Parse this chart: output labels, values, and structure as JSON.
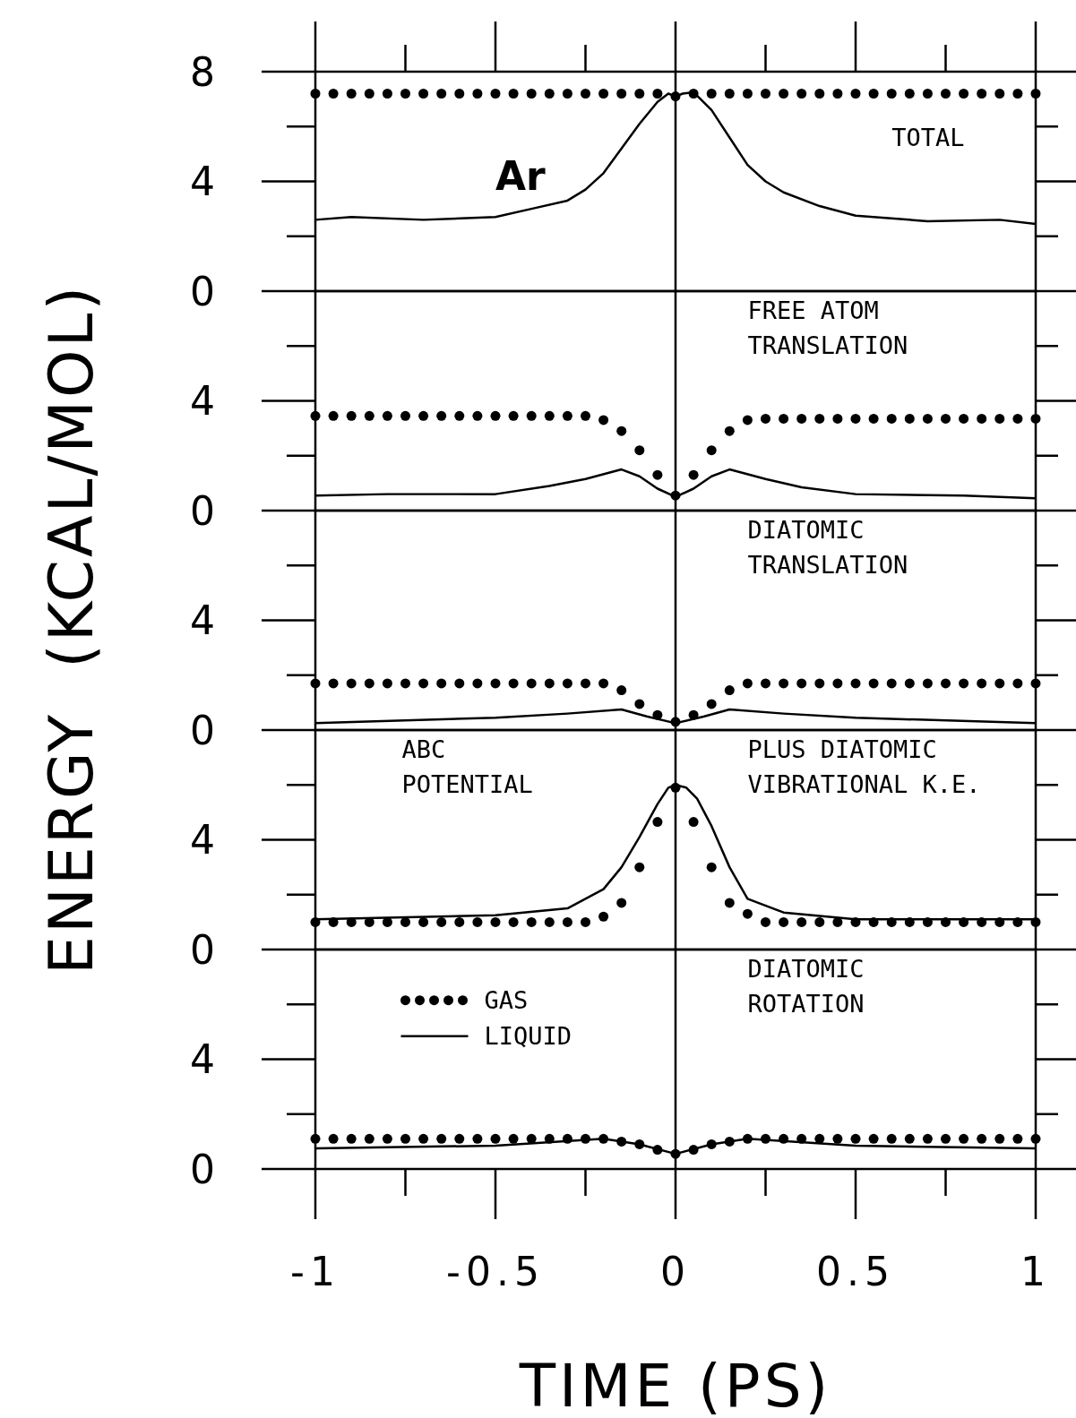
{
  "chart_data": [
    {
      "type": "line",
      "annotations": [
        "Ar",
        "TOTAL"
      ],
      "xlim": [
        -1,
        1
      ],
      "xticks": [
        {
          "value": -1,
          "label": null
        },
        {
          "value": -0.5,
          "label": null
        },
        {
          "value": 0,
          "label": null
        },
        {
          "value": 0.5,
          "label": null
        },
        {
          "value": 1,
          "label": null
        }
      ],
      "ylim": [
        0,
        8
      ],
      "yticks": [
        0,
        4,
        8
      ],
      "tick_labels": "y",
      "legend": false,
      "ref_lines": [
        {
          "axis": "x",
          "value": 0
        }
      ],
      "series": [
        {
          "type": "scatter",
          "marker": "circle",
          "color": "#000000",
          "x": [
            -1,
            -0.95,
            -0.9,
            -0.85,
            -0.8,
            -0.75,
            -0.7,
            -0.65,
            -0.6,
            -0.55,
            -0.5,
            -0.45,
            -0.4,
            -0.35,
            -0.3,
            -0.25,
            -0.2,
            -0.15,
            -0.1,
            -0.05,
            0,
            0.05,
            0.1,
            0.15,
            0.2,
            0.25,
            0.3,
            0.35,
            0.4,
            0.45,
            0.5,
            0.55,
            0.6,
            0.65,
            0.7,
            0.75,
            0.8,
            0.85,
            0.9,
            0.95,
            1
          ],
          "values": [
            7.2,
            7.2,
            7.2,
            7.2,
            7.2,
            7.2,
            7.2,
            7.2,
            7.2,
            7.2,
            7.2,
            7.2,
            7.2,
            7.2,
            7.2,
            7.2,
            7.2,
            7.2,
            7.2,
            7.2,
            7.1,
            7.2,
            7.2,
            7.2,
            7.2,
            7.2,
            7.2,
            7.2,
            7.2,
            7.2,
            7.2,
            7.2,
            7.2,
            7.2,
            7.2,
            7.2,
            7.2,
            7.2,
            7.2,
            7.2,
            7.2
          ]
        },
        {
          "type": "line",
          "marker": "none",
          "line_style": "solid",
          "color": "#000000",
          "x": [
            -1,
            -0.9,
            -0.7,
            -0.5,
            -0.4,
            -0.3,
            -0.25,
            -0.2,
            -0.15,
            -0.1,
            -0.05,
            -0.02,
            0,
            0.02,
            0.05,
            0.1,
            0.15,
            0.2,
            0.25,
            0.3,
            0.4,
            0.5,
            0.7,
            0.9,
            1
          ],
          "values": [
            2.6,
            2.7,
            2.6,
            2.7,
            3.0,
            3.3,
            3.7,
            4.3,
            5.2,
            6.1,
            6.9,
            7.2,
            7.1,
            7.2,
            7.25,
            6.6,
            5.6,
            4.6,
            4.0,
            3.6,
            3.1,
            2.75,
            2.55,
            2.6,
            2.45
          ]
        }
      ]
    },
    {
      "type": "line",
      "annotations": [
        "FREE ATOM\nTRANSLATION"
      ],
      "xlim": [
        -1,
        1
      ],
      "ylim": [
        0,
        8
      ],
      "yticks": [
        0,
        4
      ],
      "tick_labels": "y",
      "legend": false,
      "ref_lines": [
        {
          "axis": "x",
          "value": 0
        }
      ],
      "series": [
        {
          "type": "scatter",
          "marker": "circle",
          "color": "#000000",
          "x": [
            -1,
            -0.95,
            -0.9,
            -0.85,
            -0.8,
            -0.75,
            -0.7,
            -0.65,
            -0.6,
            -0.55,
            -0.5,
            -0.45,
            -0.4,
            -0.35,
            -0.3,
            -0.25,
            -0.2,
            -0.15,
            -0.1,
            -0.05,
            0,
            0.05,
            0.1,
            0.15,
            0.2,
            0.25,
            0.3,
            0.35,
            0.4,
            0.45,
            0.5,
            0.55,
            0.6,
            0.65,
            0.7,
            0.75,
            0.8,
            0.85,
            0.9,
            0.95,
            1
          ],
          "values": [
            3.45,
            3.45,
            3.45,
            3.45,
            3.45,
            3.45,
            3.45,
            3.45,
            3.45,
            3.45,
            3.45,
            3.45,
            3.45,
            3.45,
            3.45,
            3.45,
            3.3,
            2.9,
            2.2,
            1.3,
            0.55,
            1.3,
            2.2,
            2.9,
            3.3,
            3.35,
            3.35,
            3.35,
            3.35,
            3.35,
            3.35,
            3.35,
            3.35,
            3.35,
            3.35,
            3.35,
            3.35,
            3.35,
            3.35,
            3.35,
            3.35
          ]
        },
        {
          "type": "line",
          "marker": "none",
          "line_style": "solid",
          "color": "#000000",
          "x": [
            -1,
            -0.8,
            -0.5,
            -0.35,
            -0.25,
            -0.15,
            -0.1,
            -0.05,
            0,
            0.05,
            0.1,
            0.15,
            0.25,
            0.35,
            0.5,
            0.8,
            1
          ],
          "values": [
            0.55,
            0.6,
            0.6,
            0.9,
            1.15,
            1.5,
            1.25,
            0.8,
            0.5,
            0.8,
            1.25,
            1.5,
            1.15,
            0.85,
            0.6,
            0.55,
            0.45
          ]
        }
      ]
    },
    {
      "type": "line",
      "annotations": [
        "DIATOMIC\nTRANSLATION"
      ],
      "ylabel": "ENERGY  (KCAL/MOL)",
      "xlim": [
        -1,
        1
      ],
      "ylim": [
        0,
        8
      ],
      "yticks": [
        0,
        4
      ],
      "tick_labels": "y",
      "legend": false,
      "ref_lines": [
        {
          "axis": "x",
          "value": 0
        }
      ],
      "series": [
        {
          "type": "scatter",
          "marker": "circle",
          "color": "#000000",
          "x": [
            -1,
            -0.95,
            -0.9,
            -0.85,
            -0.8,
            -0.75,
            -0.7,
            -0.65,
            -0.6,
            -0.55,
            -0.5,
            -0.45,
            -0.4,
            -0.35,
            -0.3,
            -0.25,
            -0.2,
            -0.15,
            -0.1,
            -0.05,
            0,
            0.05,
            0.1,
            0.15,
            0.2,
            0.25,
            0.3,
            0.35,
            0.4,
            0.45,
            0.5,
            0.55,
            0.6,
            0.65,
            0.7,
            0.75,
            0.8,
            0.85,
            0.9,
            0.95,
            1
          ],
          "values": [
            1.7,
            1.7,
            1.7,
            1.7,
            1.7,
            1.7,
            1.7,
            1.7,
            1.7,
            1.7,
            1.7,
            1.7,
            1.7,
            1.7,
            1.7,
            1.7,
            1.7,
            1.45,
            0.95,
            0.55,
            0.3,
            0.55,
            0.95,
            1.45,
            1.7,
            1.7,
            1.7,
            1.7,
            1.7,
            1.7,
            1.7,
            1.7,
            1.7,
            1.7,
            1.7,
            1.7,
            1.7,
            1.7,
            1.7,
            1.7,
            1.7
          ]
        },
        {
          "type": "line",
          "marker": "none",
          "line_style": "solid",
          "color": "#000000",
          "x": [
            -1,
            -0.5,
            -0.3,
            -0.15,
            -0.08,
            0,
            0.08,
            0.15,
            0.3,
            0.5,
            1
          ],
          "values": [
            0.25,
            0.45,
            0.6,
            0.75,
            0.5,
            0.25,
            0.5,
            0.75,
            0.6,
            0.45,
            0.25
          ]
        }
      ]
    },
    {
      "type": "line",
      "annotations": [
        "ABC\nPOTENTIAL",
        "PLUS DIATOMIC\nVIBRATIONAL K.E."
      ],
      "xlim": [
        -1,
        1
      ],
      "ylim": [
        0,
        8
      ],
      "yticks": [
        0,
        4
      ],
      "tick_labels": "y",
      "legend": false,
      "ref_lines": [
        {
          "axis": "x",
          "value": 0
        }
      ],
      "series": [
        {
          "type": "scatter",
          "marker": "circle",
          "color": "#000000",
          "x": [
            -1,
            -0.95,
            -0.9,
            -0.85,
            -0.8,
            -0.75,
            -0.7,
            -0.65,
            -0.6,
            -0.55,
            -0.5,
            -0.45,
            -0.4,
            -0.35,
            -0.3,
            -0.25,
            -0.2,
            -0.15,
            -0.1,
            -0.05,
            0,
            0.05,
            0.1,
            0.15,
            0.2,
            0.25,
            0.3,
            0.35,
            0.4,
            0.45,
            0.5,
            0.55,
            0.6,
            0.65,
            0.7,
            0.75,
            0.8,
            0.85,
            0.9,
            0.95,
            1
          ],
          "values": [
            1.0,
            1.0,
            1.0,
            1.0,
            1.0,
            1.0,
            1.0,
            1.0,
            1.0,
            1.0,
            1.0,
            1.0,
            1.0,
            1.0,
            1.0,
            1.0,
            1.2,
            1.7,
            3.0,
            4.65,
            5.9,
            4.65,
            3.0,
            1.7,
            1.3,
            1.0,
            1.0,
            1.0,
            1.0,
            1.0,
            1.0,
            1.0,
            1.0,
            1.0,
            1.0,
            1.0,
            1.0,
            1.0,
            1.0,
            1.0,
            1.0
          ]
        },
        {
          "type": "line",
          "marker": "none",
          "line_style": "solid",
          "color": "#000000",
          "x": [
            -1,
            -0.5,
            -0.3,
            -0.2,
            -0.15,
            -0.1,
            -0.05,
            -0.02,
            0,
            0.03,
            0.06,
            0.1,
            0.15,
            0.2,
            0.3,
            0.5,
            1
          ],
          "values": [
            1.1,
            1.25,
            1.5,
            2.2,
            3.0,
            4.1,
            5.3,
            5.9,
            6.0,
            5.9,
            5.5,
            4.5,
            3.0,
            1.85,
            1.35,
            1.1,
            1.1
          ]
        }
      ]
    },
    {
      "type": "line",
      "annotations": [
        "DIATOMIC\nROTATION"
      ],
      "xlabel": "TIME  (PS)",
      "xlim": [
        -1,
        1
      ],
      "xticks": [
        -1,
        -0.5,
        0,
        0.5,
        1
      ],
      "ylim": [
        0,
        8
      ],
      "yticks": [
        0,
        4
      ],
      "legend": "top left",
      "ref_lines": [
        {
          "axis": "x",
          "value": 0
        }
      ],
      "series": [
        {
          "name": "GAS",
          "type": "scatter",
          "marker": "circle",
          "color": "#000000",
          "x": [
            -1,
            -0.95,
            -0.9,
            -0.85,
            -0.8,
            -0.75,
            -0.7,
            -0.65,
            -0.6,
            -0.55,
            -0.5,
            -0.45,
            -0.4,
            -0.35,
            -0.3,
            -0.25,
            -0.2,
            -0.15,
            -0.1,
            -0.05,
            0,
            0.05,
            0.1,
            0.15,
            0.2,
            0.25,
            0.3,
            0.35,
            0.4,
            0.45,
            0.5,
            0.55,
            0.6,
            0.65,
            0.7,
            0.75,
            0.8,
            0.85,
            0.9,
            0.95,
            1
          ],
          "values": [
            1.1,
            1.1,
            1.1,
            1.1,
            1.1,
            1.1,
            1.1,
            1.1,
            1.1,
            1.1,
            1.1,
            1.1,
            1.1,
            1.1,
            1.1,
            1.1,
            1.1,
            1.0,
            0.9,
            0.7,
            0.55,
            0.7,
            0.9,
            1.0,
            1.1,
            1.1,
            1.1,
            1.1,
            1.1,
            1.1,
            1.1,
            1.1,
            1.1,
            1.1,
            1.1,
            1.1,
            1.1,
            1.1,
            1.1,
            1.1,
            1.1
          ]
        },
        {
          "name": "LIQUID",
          "type": "line",
          "marker": "none",
          "line_style": "solid",
          "color": "#000000",
          "x": [
            -1,
            -0.5,
            -0.2,
            -0.1,
            0,
            0.1,
            0.2,
            0.5,
            1
          ],
          "values": [
            0.75,
            0.85,
            1.1,
            0.9,
            0.55,
            0.9,
            1.1,
            0.85,
            0.75
          ]
        }
      ]
    }
  ]
}
